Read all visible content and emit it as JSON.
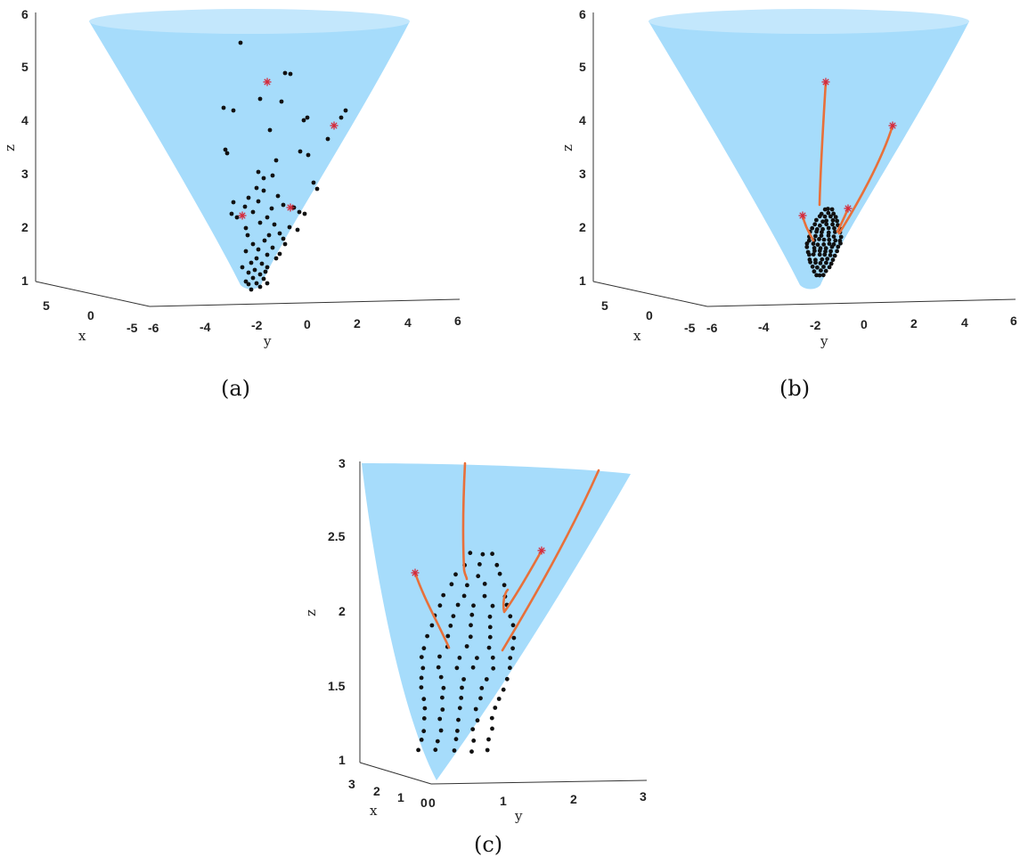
{
  "chart_data": [
    {
      "id": "a",
      "type": "scatter",
      "caption": "(a)",
      "xlabel": "x",
      "ylabel": "y",
      "zlabel": "z",
      "zlim": [
        1,
        6
      ],
      "z_ticks": [
        "1",
        "2",
        "3",
        "4",
        "5",
        "6"
      ],
      "y_ticks": [
        "-6",
        "-4",
        "-2",
        "0",
        "2",
        "4",
        "6"
      ],
      "x_ticks": [
        "5",
        "0",
        "-5"
      ],
      "surface": "cone z = sqrt(x^2 + y^2 + 1)",
      "colors": {
        "surface": "#a6dcfb",
        "points": "#111111",
        "targets": "#d42a3a"
      },
      "targets_yz": [
        [
          -1.5,
          4.7
        ],
        [
          1.1,
          3.85
        ],
        [
          -2.4,
          2.2
        ],
        [
          -0.5,
          2.35
        ]
      ]
    },
    {
      "id": "b",
      "type": "scatter",
      "caption": "(b)",
      "xlabel": "x",
      "ylabel": "y",
      "zlabel": "z",
      "zlim": [
        1,
        6
      ],
      "z_ticks": [
        "1",
        "2",
        "3",
        "4",
        "5",
        "6"
      ],
      "y_ticks": [
        "-6",
        "-4",
        "-2",
        "0",
        "2",
        "4",
        "6"
      ],
      "x_ticks": [
        "5",
        "0",
        "-5"
      ],
      "colors": {
        "surface": "#a6dcfb",
        "points": "#111111",
        "trajectories": "#e8703a",
        "targets": "#d42a3a"
      },
      "targets_yz": [
        [
          -1.5,
          4.7
        ],
        [
          1.1,
          3.85
        ],
        [
          -2.4,
          2.2
        ],
        [
          -0.5,
          2.35
        ]
      ]
    },
    {
      "id": "c",
      "type": "scatter",
      "caption": "(c)",
      "xlabel": "x",
      "ylabel": "y",
      "zlabel": "z",
      "zlim": [
        1,
        3
      ],
      "z_ticks": [
        "1",
        "1.5",
        "2",
        "2.5",
        "3"
      ],
      "y_ticks": [
        "0",
        "1",
        "2",
        "3"
      ],
      "x_ticks": [
        "3",
        "2",
        "1",
        "0"
      ],
      "colors": {
        "surface": "#a6dcfb",
        "points": "#111111",
        "trajectories": "#e8703a",
        "targets": "#d42a3a"
      },
      "targets_yz": [
        [
          -0.1,
          2.25
        ],
        [
          1.2,
          2.4
        ]
      ]
    }
  ]
}
